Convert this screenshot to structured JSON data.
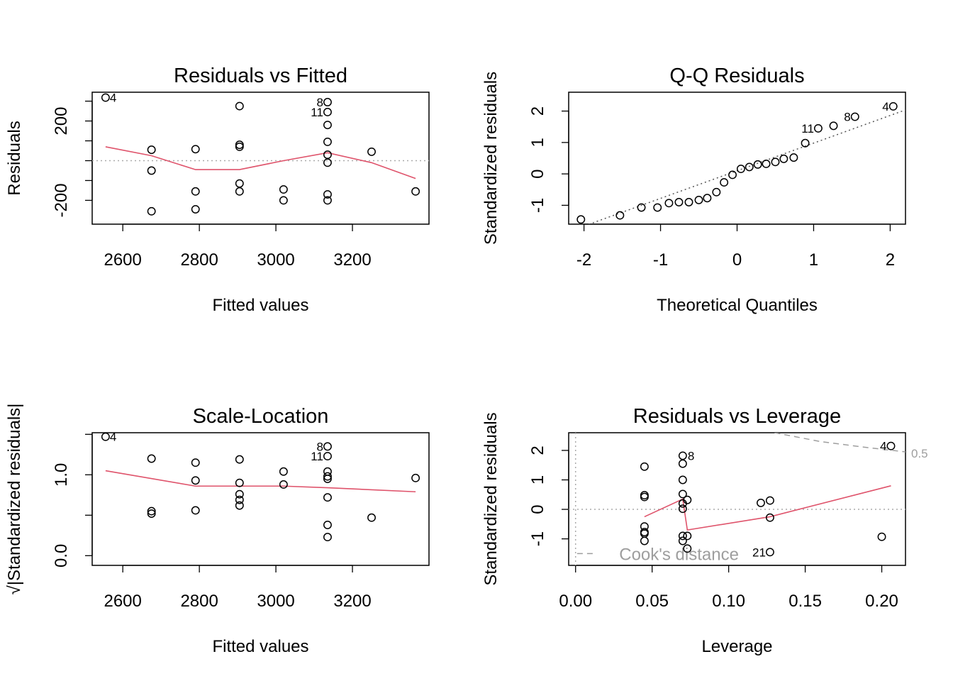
{
  "chart_data": [
    {
      "type": "scatter",
      "title": "Residuals vs Fitted",
      "xlabel": "Fitted values",
      "ylabel": "Residuals",
      "xlim": [
        2520,
        3400
      ],
      "ylim": [
        -320,
        345
      ],
      "xticks": [
        2600,
        2800,
        3000,
        3200
      ],
      "xtick_labels": [
        "2600",
        "2800",
        "3000",
        "3200"
      ],
      "yticks": [
        -200,
        0,
        200
      ],
      "ytick_labels": [
        "-200",
        "",
        "200"
      ],
      "ytick_marks": [
        -200,
        -100,
        0,
        100,
        200,
        300
      ],
      "reference_line": 0,
      "points": [
        {
          "x": 2555,
          "y": 318,
          "label": "4"
        },
        {
          "x": 2675,
          "y": 55
        },
        {
          "x": 2675,
          "y": -50
        },
        {
          "x": 2675,
          "y": -255
        },
        {
          "x": 2790,
          "y": 58
        },
        {
          "x": 2790,
          "y": -155
        },
        {
          "x": 2790,
          "y": -245
        },
        {
          "x": 2905,
          "y": 275
        },
        {
          "x": 2905,
          "y": 80
        },
        {
          "x": 2905,
          "y": 70
        },
        {
          "x": 2905,
          "y": -115
        },
        {
          "x": 2905,
          "y": -155
        },
        {
          "x": 3020,
          "y": -145
        },
        {
          "x": 3020,
          "y": -200
        },
        {
          "x": 3135,
          "y": 295,
          "label": "8"
        },
        {
          "x": 3135,
          "y": 245,
          "label": "11"
        },
        {
          "x": 3135,
          "y": 180
        },
        {
          "x": 3135,
          "y": 95
        },
        {
          "x": 3135,
          "y": 30
        },
        {
          "x": 3135,
          "y": -10
        },
        {
          "x": 3135,
          "y": -170
        },
        {
          "x": 3135,
          "y": -200
        },
        {
          "x": 3250,
          "y": 45
        },
        {
          "x": 3365,
          "y": -155
        }
      ],
      "smooth": [
        [
          2555,
          70
        ],
        [
          2675,
          25
        ],
        [
          2790,
          -45
        ],
        [
          2905,
          -45
        ],
        [
          3020,
          0
        ],
        [
          3135,
          40
        ],
        [
          3250,
          -10
        ],
        [
          3365,
          -90
        ]
      ]
    },
    {
      "type": "scatter",
      "title": "Q-Q Residuals",
      "xlabel": "Theoretical Quantiles",
      "ylabel": "Standardized residuals",
      "xlim": [
        -2.2,
        2.2
      ],
      "ylim": [
        -1.6,
        2.6
      ],
      "xticks": [
        -2,
        -1,
        0,
        1,
        2
      ],
      "xtick_labels": [
        "-2",
        "-1",
        "0",
        "1",
        "2"
      ],
      "yticks": [
        -1,
        0,
        1,
        2
      ],
      "ytick_labels": [
        "-1",
        "0",
        "1",
        "2"
      ],
      "reference_line": {
        "slope": 0.88,
        "intercept": 0.1
      },
      "points": [
        {
          "x": -2.04,
          "y": -1.45
        },
        {
          "x": -1.53,
          "y": -1.32
        },
        {
          "x": -1.25,
          "y": -1.07
        },
        {
          "x": -1.04,
          "y": -1.07
        },
        {
          "x": -0.89,
          "y": -0.93
        },
        {
          "x": -0.76,
          "y": -0.9
        },
        {
          "x": -0.63,
          "y": -0.9
        },
        {
          "x": -0.5,
          "y": -0.83
        },
        {
          "x": -0.39,
          "y": -0.77
        },
        {
          "x": -0.27,
          "y": -0.58
        },
        {
          "x": -0.17,
          "y": -0.27
        },
        {
          "x": -0.06,
          "y": -0.03
        },
        {
          "x": 0.05,
          "y": 0.16
        },
        {
          "x": 0.16,
          "y": 0.22
        },
        {
          "x": 0.27,
          "y": 0.3
        },
        {
          "x": 0.38,
          "y": 0.32
        },
        {
          "x": 0.5,
          "y": 0.38
        },
        {
          "x": 0.61,
          "y": 0.48
        },
        {
          "x": 0.74,
          "y": 0.52
        },
        {
          "x": 0.89,
          "y": 0.98
        },
        {
          "x": 1.06,
          "y": 1.45,
          "label": "11"
        },
        {
          "x": 1.26,
          "y": 1.53
        },
        {
          "x": 1.54,
          "y": 1.82,
          "label": "8"
        },
        {
          "x": 2.04,
          "y": 2.15,
          "label": "4"
        }
      ]
    },
    {
      "type": "scatter",
      "title": "Scale-Location",
      "xlabel": "Fitted values",
      "ylabel": "√|Standardized residuals|",
      "xlim": [
        2520,
        3400
      ],
      "ylim": [
        -0.12,
        1.52
      ],
      "xticks": [
        2600,
        2800,
        3000,
        3200
      ],
      "xtick_labels": [
        "2600",
        "2800",
        "3000",
        "3200"
      ],
      "yticks": [
        0.0,
        1.0
      ],
      "ytick_labels": [
        "0.0",
        "1.0"
      ],
      "ytick_marks": [
        0.0,
        0.5,
        1.0,
        1.5
      ],
      "points": [
        {
          "x": 2555,
          "y": 1.47,
          "label": "4"
        },
        {
          "x": 2675,
          "y": 1.2
        },
        {
          "x": 2675,
          "y": 0.55
        },
        {
          "x": 2675,
          "y": 0.52
        },
        {
          "x": 2790,
          "y": 1.15
        },
        {
          "x": 2790,
          "y": 0.93
        },
        {
          "x": 2790,
          "y": 0.56
        },
        {
          "x": 2905,
          "y": 1.19
        },
        {
          "x": 2905,
          "y": 0.9
        },
        {
          "x": 2905,
          "y": 0.76
        },
        {
          "x": 2905,
          "y": 0.69
        },
        {
          "x": 2905,
          "y": 0.62
        },
        {
          "x": 3020,
          "y": 1.04
        },
        {
          "x": 3020,
          "y": 0.88
        },
        {
          "x": 3135,
          "y": 1.35,
          "label": "8"
        },
        {
          "x": 3135,
          "y": 1.23,
          "label": "11"
        },
        {
          "x": 3135,
          "y": 1.04
        },
        {
          "x": 3135,
          "y": 0.98
        },
        {
          "x": 3135,
          "y": 0.95
        },
        {
          "x": 3135,
          "y": 0.72
        },
        {
          "x": 3135,
          "y": 0.38
        },
        {
          "x": 3135,
          "y": 0.23
        },
        {
          "x": 3250,
          "y": 0.47
        },
        {
          "x": 3365,
          "y": 0.96
        }
      ],
      "smooth": [
        [
          2555,
          1.05
        ],
        [
          2790,
          0.86
        ],
        [
          3020,
          0.86
        ],
        [
          3135,
          0.84
        ],
        [
          3365,
          0.79
        ]
      ]
    },
    {
      "type": "scatter",
      "title": "Residuals vs Leverage",
      "xlabel": "Leverage",
      "ylabel": "Standardized residuals",
      "xlim": [
        -0.0045,
        0.2155
      ],
      "ylim": [
        -1.9,
        2.6
      ],
      "xticks": [
        0.0,
        0.05,
        0.1,
        0.15,
        0.2
      ],
      "xtick_labels": [
        "0.00",
        "0.05",
        "0.10",
        "0.15",
        "0.20"
      ],
      "yticks": [
        -1,
        0,
        1,
        2
      ],
      "ytick_labels": [
        "-1",
        "0",
        "1",
        "2"
      ],
      "reference_line": 0,
      "legend": "Cook's distance",
      "legend_position": "bottom-left",
      "cook_level_label": "0.5",
      "cook_curve": [
        [
          0.13,
          2.6
        ],
        [
          0.16,
          2.3
        ],
        [
          0.19,
          2.1
        ],
        [
          0.2155,
          1.95
        ]
      ],
      "points": [
        {
          "x": 0.045,
          "y": 1.45
        },
        {
          "x": 0.045,
          "y": 0.48
        },
        {
          "x": 0.045,
          "y": 0.42
        },
        {
          "x": 0.045,
          "y": -0.58
        },
        {
          "x": 0.045,
          "y": -0.77
        },
        {
          "x": 0.045,
          "y": -0.82
        },
        {
          "x": 0.045,
          "y": -1.07
        },
        {
          "x": 0.07,
          "y": 1.82,
          "label": "8"
        },
        {
          "x": 0.07,
          "y": 1.55
        },
        {
          "x": 0.07,
          "y": 1.0
        },
        {
          "x": 0.07,
          "y": 0.52
        },
        {
          "x": 0.07,
          "y": 0.2
        },
        {
          "x": 0.07,
          "y": 0.02
        },
        {
          "x": 0.07,
          "y": -0.9
        },
        {
          "x": 0.07,
          "y": -1.07
        },
        {
          "x": 0.073,
          "y": 0.32
        },
        {
          "x": 0.073,
          "y": -0.9
        },
        {
          "x": 0.073,
          "y": -1.33
        },
        {
          "x": 0.121,
          "y": 0.22
        },
        {
          "x": 0.127,
          "y": 0.3
        },
        {
          "x": 0.127,
          "y": -0.28
        },
        {
          "x": 0.127,
          "y": -1.45,
          "label": "21"
        },
        {
          "x": 0.2,
          "y": -0.93
        },
        {
          "x": 0.206,
          "y": 2.15,
          "label": "4"
        }
      ],
      "smooth": [
        [
          0.045,
          -0.25
        ],
        [
          0.07,
          0.35
        ],
        [
          0.073,
          -0.7
        ],
        [
          0.127,
          -0.25
        ],
        [
          0.206,
          0.8
        ]
      ]
    }
  ]
}
